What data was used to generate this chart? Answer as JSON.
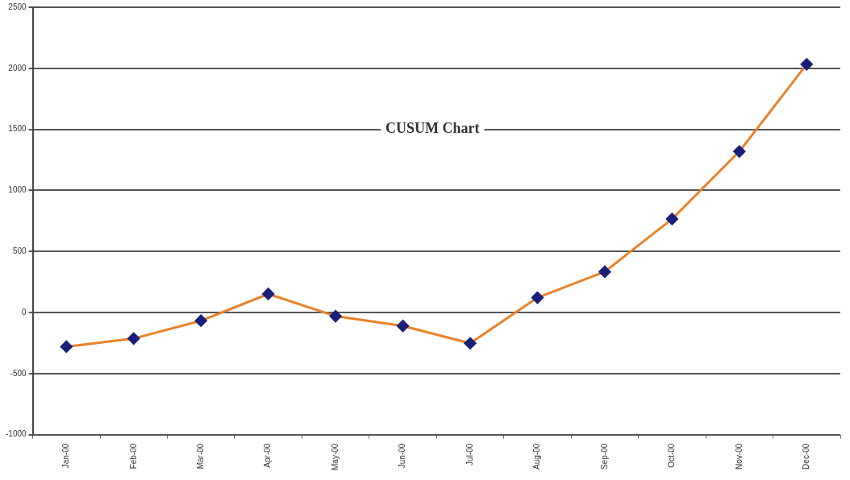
{
  "chart_data": {
    "type": "line",
    "title": "CUSUM Chart",
    "categories": [
      "Jan-00",
      "Feb-00",
      "Mar-00",
      "Apr-00",
      "May-00",
      "Jun-00",
      "Jul-00",
      "Aug-00",
      "Sep-00",
      "Oct-00",
      "Nov-00",
      "Dec-00"
    ],
    "series": [
      {
        "color": "#e8822a",
        "colors": [
          "#1a1f78",
          "#1a1f78",
          "#1a1f78",
          "#1a1f78",
          "#1a1f78",
          "#1a1f78",
          "#1a1f78",
          "#1a1f78",
          "#1a1f78",
          "#1a1f78",
          "#1a1f78",
          "#1a1f78"
        ],
        "values": [
          -280,
          -213,
          -67,
          152,
          -30,
          -110,
          -252,
          122,
          334,
          766,
          1319,
          2033
        ]
      }
    ],
    "ylim": [
      -1000,
      2500
    ],
    "yticks": [
      -1000,
      -500,
      0,
      500,
      1000,
      1500,
      2000,
      2500
    ],
    "grid": "y",
    "marker": "diamond",
    "line_style": "solid"
  }
}
